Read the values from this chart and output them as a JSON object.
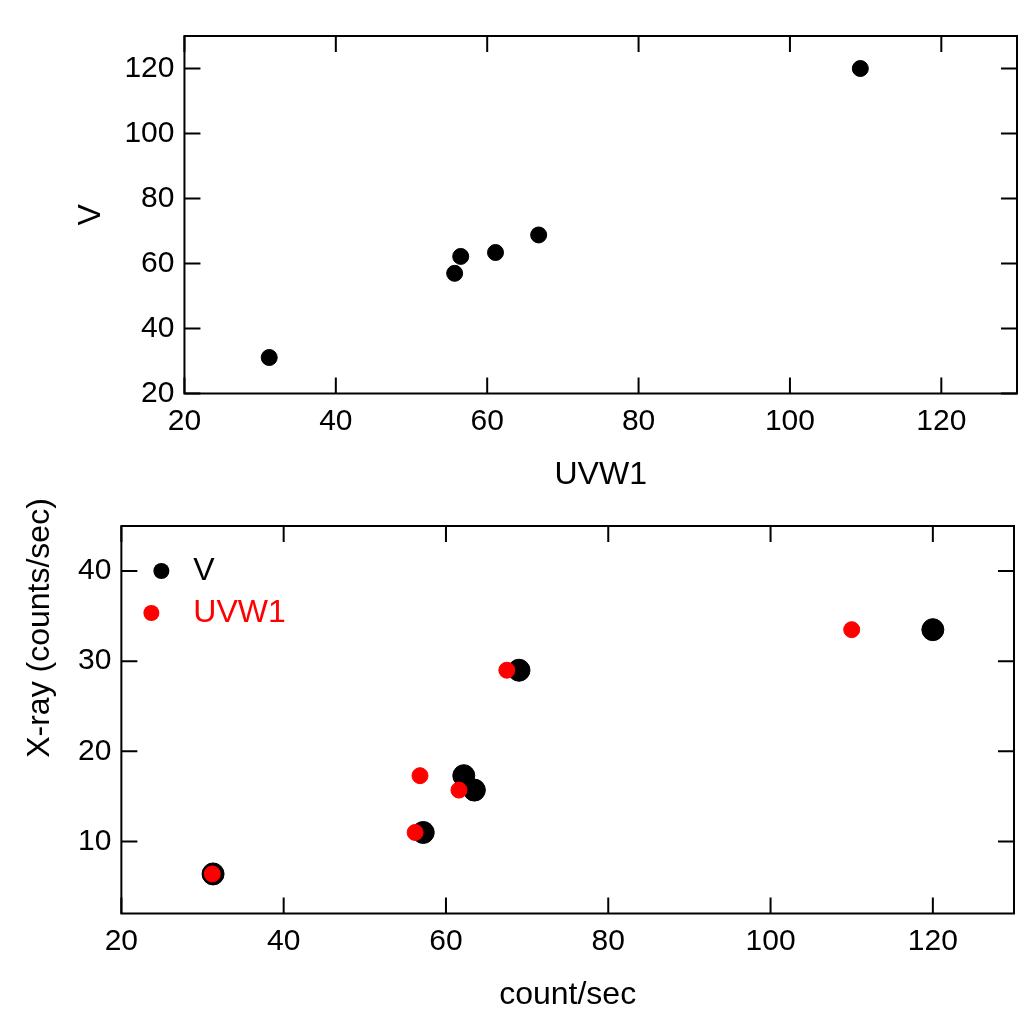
{
  "chart_data": [
    {
      "type": "scatter",
      "xlabel": "UVW1",
      "ylabel": "V",
      "x": [
        31.2,
        55.7,
        56.5,
        61.1,
        66.8,
        109.3
      ],
      "xlim": [
        20,
        130
      ],
      "xticks": [
        20,
        40,
        60,
        80,
        100,
        120
      ],
      "ylim": [
        20,
        130
      ],
      "yticks": [
        20,
        40,
        60,
        80,
        100,
        120
      ],
      "marker": "circle",
      "grid": false,
      "series": [
        {
          "color": "#000000",
          "values": [
            31.1,
            57,
            62.2,
            63.4,
            68.8,
            120
          ]
        }
      ]
    },
    {
      "type": "scatter",
      "xlabel": "count/sec",
      "ylabel": "X-ray (counts/sec)",
      "xlim": [
        20,
        130
      ],
      "xticks": [
        20,
        40,
        60,
        80,
        100,
        120
      ],
      "ylim": [
        2,
        45
      ],
      "yticks": [
        10,
        20,
        30,
        40
      ],
      "marker": "circle",
      "grid": false,
      "legend": "top left",
      "series": [
        {
          "name": "V",
          "color": "#000000",
          "x": [
            31.3,
            57.2,
            62.2,
            63.5,
            69,
            120
          ],
          "values": [
            6.4,
            11,
            17.3,
            15.7,
            29,
            33.5
          ]
        },
        {
          "name": "UVW1",
          "color": "#ff0000",
          "x": [
            31.2,
            56.2,
            56.8,
            61.6,
            67.5,
            110
          ],
          "values": [
            6.4,
            11,
            17.3,
            15.7,
            29,
            33.5
          ]
        }
      ]
    }
  ]
}
